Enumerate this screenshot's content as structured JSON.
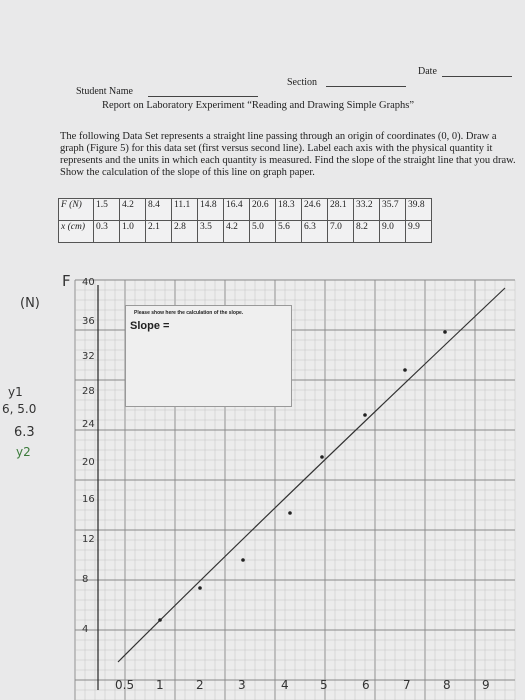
{
  "header": {
    "date_label": "Date",
    "section_label": "Section",
    "student_label": "Student Name"
  },
  "title": "Report on Laboratory Experiment “Reading and Drawing Simple Graphs”",
  "instructions": "The following Data Set represents a straight line passing through an origin of coordinates (0, 0). Draw a graph (Figure 5) for this data set (first versus second line). Label each axis with the physical quantity it represents and the units in which each quantity is measured. Find the slope of the straight line that you draw. Show the calculation of the slope of this line on graph paper.",
  "table": {
    "rows": [
      [
        "F (N)",
        "1.5",
        "4.2",
        "8.4",
        "11.1",
        "14.8",
        "16.4",
        "20.6",
        "18.3",
        "24.6",
        "28.1",
        "33.2",
        "35.7",
        "39.8"
      ],
      [
        "x (cm)",
        "0.3",
        "1.0",
        "2.1",
        "2.8",
        "3.5",
        "4.2",
        "5.0",
        "5.6",
        "6.3",
        "7.0",
        "8.2",
        "9.0",
        "9.9"
      ]
    ]
  },
  "graph": {
    "y_axis_label": "F",
    "y_unit": "(N)",
    "y_ticks": [
      "40",
      "36",
      "32",
      "28",
      "24",
      "20",
      "16",
      "12",
      "8",
      "4"
    ],
    "x_ticks": [
      "0.5",
      "1",
      "2",
      "3",
      "4",
      "5",
      "6",
      "7",
      "8",
      "9"
    ],
    "note_title": "Please show here the calculation of the slope.",
    "slope_label": "Slope ="
  },
  "margin_notes": [
    "y1",
    "6, 5.0",
    "6.3",
    "y2"
  ]
}
